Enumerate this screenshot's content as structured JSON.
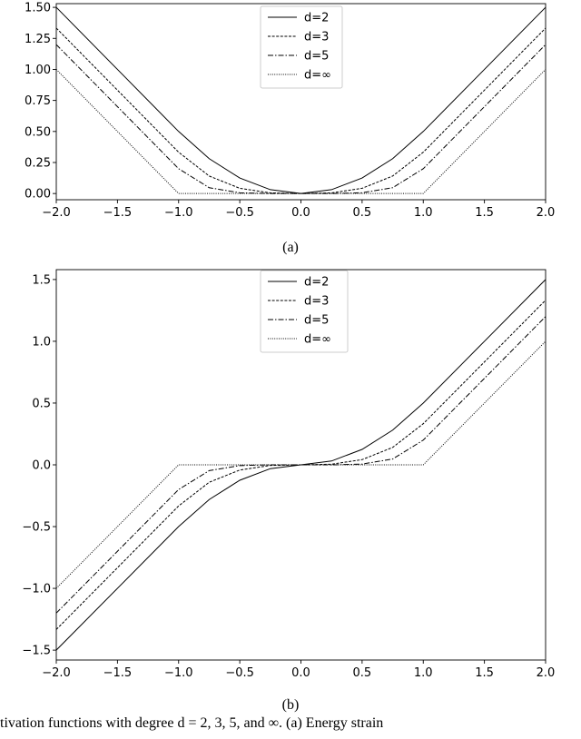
{
  "captions": {
    "a": "(a)",
    "b": "(b)"
  },
  "figure_caption": "tivation functions with degree d = 2, 3, 5, and ∞. (a) Energy strain",
  "chart_data": [
    {
      "id": "a",
      "type": "line",
      "xlim": [
        -2.0,
        2.0
      ],
      "ylim": [
        -0.05,
        1.53
      ],
      "xticks": [
        "-2.0",
        "-1.5",
        "-1.0",
        "-0.5",
        "0.0",
        "0.5",
        "1.0",
        "1.5",
        "2.0"
      ],
      "yticks": [
        "0.00",
        "0.25",
        "0.50",
        "0.75",
        "1.00",
        "1.25",
        "1.50"
      ],
      "grid": false,
      "legend_position": "top-center",
      "series": [
        {
          "name": "d=2",
          "style": "solid",
          "x": [
            -2.0,
            -1.5,
            -1.0,
            -0.75,
            -0.5,
            -0.25,
            0.0,
            0.25,
            0.5,
            0.75,
            1.0,
            1.5,
            2.0
          ],
          "y": [
            1.5,
            1.0,
            0.5,
            0.281,
            0.125,
            0.031,
            0.0,
            0.031,
            0.125,
            0.281,
            0.5,
            1.0,
            1.5
          ]
        },
        {
          "name": "d=3",
          "style": "dashed",
          "x": [
            -2.0,
            -1.5,
            -1.0,
            -0.75,
            -0.5,
            -0.25,
            0.0,
            0.25,
            0.5,
            0.75,
            1.0,
            1.5,
            2.0
          ],
          "y": [
            1.333,
            0.833,
            0.333,
            0.141,
            0.042,
            0.005,
            0.0,
            0.005,
            0.042,
            0.141,
            0.333,
            0.833,
            1.333
          ]
        },
        {
          "name": "d=5",
          "style": "dashdot",
          "x": [
            -2.0,
            -1.5,
            -1.0,
            -0.75,
            -0.5,
            -0.25,
            0.0,
            0.25,
            0.5,
            0.75,
            1.0,
            1.5,
            2.0
          ],
          "y": [
            1.2,
            0.7,
            0.2,
            0.047,
            0.006,
            0.0,
            0.0,
            0.0,
            0.006,
            0.047,
            0.2,
            0.7,
            1.2
          ]
        },
        {
          "name": "d=∞",
          "style": "dotted",
          "x": [
            -2.0,
            -1.5,
            -1.0,
            -0.5,
            0.0,
            0.5,
            1.0,
            1.5,
            2.0
          ],
          "y": [
            1.0,
            0.5,
            0.0,
            0.0,
            0.0,
            0.0,
            0.0,
            0.5,
            1.0
          ]
        }
      ]
    },
    {
      "id": "b",
      "type": "line",
      "xlim": [
        -2.0,
        2.0
      ],
      "ylim": [
        -1.58,
        1.58
      ],
      "xticks": [
        "-2.0",
        "-1.5",
        "-1.0",
        "-0.5",
        "0.0",
        "0.5",
        "1.0",
        "1.5",
        "2.0"
      ],
      "yticks": [
        "-1.5",
        "-1.0",
        "-0.5",
        "0.0",
        "0.5",
        "1.0",
        "1.5"
      ],
      "grid": false,
      "legend_position": "top-center",
      "series": [
        {
          "name": "d=2",
          "style": "solid",
          "x": [
            -2.0,
            -1.5,
            -1.0,
            -0.75,
            -0.5,
            -0.25,
            0.0,
            0.25,
            0.5,
            0.75,
            1.0,
            1.5,
            2.0
          ],
          "y": [
            -1.5,
            -1.0,
            -0.5,
            -0.281,
            -0.125,
            -0.031,
            0.0,
            0.031,
            0.125,
            0.281,
            0.5,
            1.0,
            1.5
          ]
        },
        {
          "name": "d=3",
          "style": "dashed",
          "x": [
            -2.0,
            -1.5,
            -1.0,
            -0.75,
            -0.5,
            -0.25,
            0.0,
            0.25,
            0.5,
            0.75,
            1.0,
            1.5,
            2.0
          ],
          "y": [
            -1.333,
            -0.833,
            -0.333,
            -0.141,
            -0.042,
            -0.005,
            0.0,
            0.005,
            0.042,
            0.141,
            0.333,
            0.833,
            1.333
          ]
        },
        {
          "name": "d=5",
          "style": "dashdot",
          "x": [
            -2.0,
            -1.5,
            -1.0,
            -0.75,
            -0.5,
            -0.25,
            0.0,
            0.25,
            0.5,
            0.75,
            1.0,
            1.5,
            2.0
          ],
          "y": [
            -1.2,
            -0.7,
            -0.2,
            -0.047,
            -0.006,
            0.0,
            0.0,
            0.0,
            0.006,
            0.047,
            0.2,
            0.7,
            1.2
          ]
        },
        {
          "name": "d=∞",
          "style": "dotted",
          "x": [
            -2.0,
            -1.5,
            -1.0,
            -0.5,
            0.0,
            0.5,
            1.0,
            1.5,
            2.0
          ],
          "y": [
            -1.0,
            -0.5,
            0.0,
            0.0,
            0.0,
            0.0,
            0.0,
            0.5,
            1.0
          ]
        }
      ]
    }
  ]
}
